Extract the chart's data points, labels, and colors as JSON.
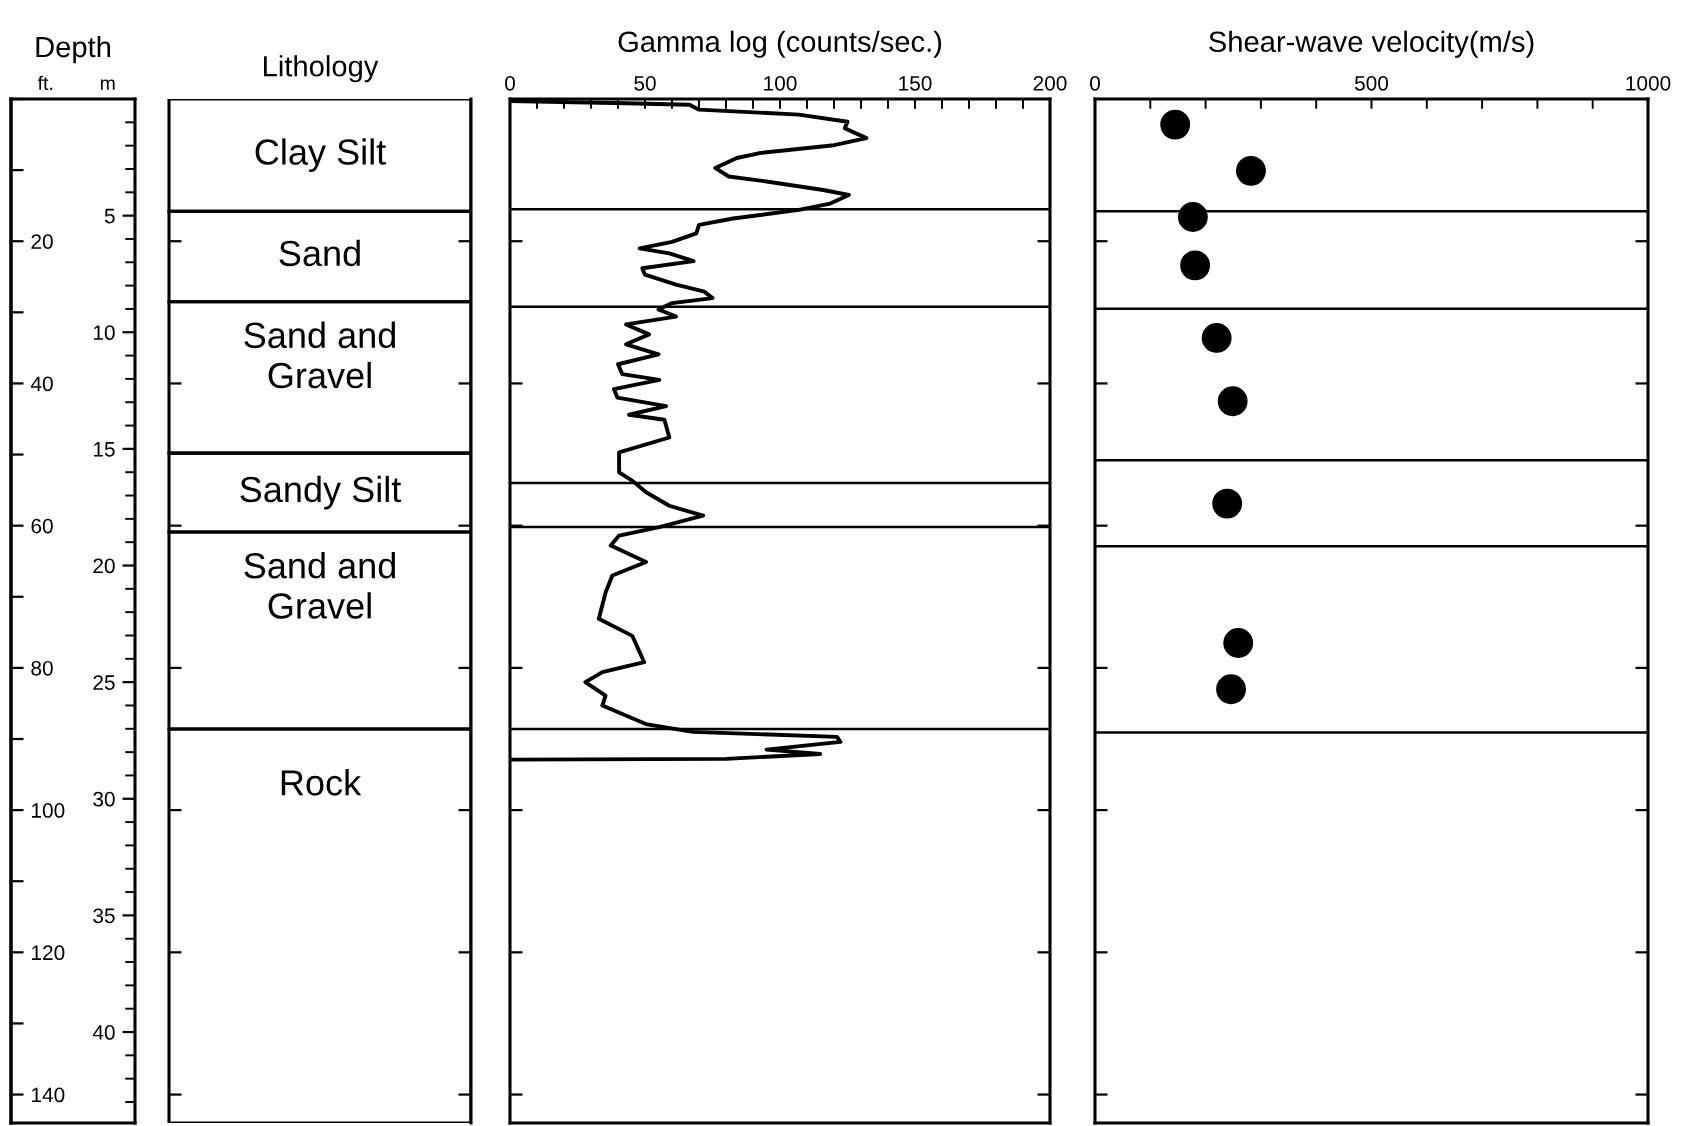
{
  "chart_data": [
    {
      "type": "bar",
      "ylabel": "Depth",
      "y2label": "m",
      "annotations": [
        "ft."
      ],
      "stacked": true,
      "categories": [
        "Lithology"
      ],
      "ylim": [
        144,
        0
      ],
      "yticks": [
        20,
        40,
        60,
        80,
        100,
        120,
        140
      ],
      "y2lim": [
        43.9,
        0
      ],
      "y2ticks": [
        5,
        10,
        15,
        20,
        25,
        30,
        35,
        40
      ],
      "series": [
        {
          "name": "Clay Silt",
          "values": [
            15.8
          ]
        },
        {
          "name": "Sand",
          "values": [
            12.7
          ]
        },
        {
          "name": "Sand and\nGravel",
          "values": [
            21.3
          ]
        },
        {
          "name": "Sandy Silt",
          "values": [
            11.1
          ]
        },
        {
          "name": "Sand and\nGravel",
          "values": [
            27.7
          ]
        },
        {
          "name": "Rock",
          "values": [
            55.4
          ]
        }
      ]
    },
    {
      "type": "line",
      "title": "Gamma log (counts/sec.)",
      "xlim": [
        0,
        200
      ],
      "xticks": [
        0,
        {
          "value": 10,
          "label": null
        },
        {
          "value": 20,
          "label": null
        },
        {
          "value": 30,
          "label": null
        },
        {
          "value": 40,
          "label": null
        },
        50,
        {
          "value": 60,
          "label": null
        },
        {
          "value": 70,
          "label": null
        },
        {
          "value": 80,
          "label": null
        },
        {
          "value": 90,
          "label": null
        },
        100,
        {
          "value": 110,
          "label": null
        },
        {
          "value": 120,
          "label": null
        },
        {
          "value": 130,
          "label": null
        },
        {
          "value": 140,
          "label": null
        },
        150,
        {
          "value": 160,
          "label": null
        },
        {
          "value": 170,
          "label": null
        },
        {
          "value": 180,
          "label": null
        },
        {
          "value": 190,
          "label": null
        },
        200
      ],
      "ylim": [
        144,
        0
      ],
      "yticks": [
        {
          "value": 20,
          "label": null
        },
        {
          "value": 40,
          "label": null
        },
        {
          "value": 60,
          "label": null
        },
        {
          "value": 80,
          "label": null
        },
        {
          "value": 100,
          "label": null
        },
        {
          "value": 120,
          "label": null
        },
        {
          "value": 140,
          "label": null
        }
      ],
      "tick_labels": "x",
      "marker": "none",
      "line_style": "solid",
      "ref_lines": [
        {
          "axis": "y",
          "value": 15.5
        },
        {
          "axis": "y",
          "value": 29.2
        },
        {
          "axis": "y",
          "value": 54.0
        },
        {
          "axis": "y",
          "value": 60.2
        },
        {
          "axis": "y",
          "value": 88.6
        }
      ],
      "series": [
        {
          "color": "#000000",
          "x": [
            0,
            43,
            66.5,
            70,
            107,
            125,
            124,
            132,
            120,
            92.5,
            84,
            76,
            81,
            95,
            116,
            125.5,
            118.6,
            107,
            82.6,
            70,
            69,
            60,
            48,
            59,
            68,
            49,
            50,
            61.5,
            72,
            75,
            60,
            55,
            61.5,
            43,
            51.5,
            43,
            55,
            40,
            41.6,
            55.3,
            38.5,
            39.8,
            57.8,
            44.1,
            57.2,
            59,
            40.4,
            40.4,
            45.4,
            50.4,
            59,
            71.5,
            55.3,
            40.4,
            37.3,
            50.4,
            37.9,
            35.4,
            32.9,
            45.3,
            49.7,
            34.2,
            27.9,
            35.4,
            34.2,
            50.3,
            67.7,
            121.1,
            122.4,
            95,
            114.9,
            80.1,
            0
          ],
          "values": [
            0.3,
            0.6,
            0.8,
            1.5,
            2.2,
            3.2,
            4.1,
            5.5,
            6.5,
            7.6,
            8.3,
            9.7,
            10.9,
            11.6,
            12.8,
            13.5,
            14.7,
            15.6,
            16.8,
            17.7,
            18.9,
            20.1,
            21,
            21.7,
            22.8,
            23.8,
            24.7,
            26.1,
            27.1,
            28,
            28.7,
            29.6,
            30.6,
            31.7,
            33.1,
            34.5,
            35.9,
            37.3,
            38.7,
            39.5,
            40.8,
            42,
            43.2,
            44.4,
            45.1,
            47.6,
            49.7,
            52.5,
            53.7,
            55.3,
            57.2,
            58.6,
            60.2,
            61.4,
            62.8,
            65.1,
            67,
            69.4,
            73.1,
            75.5,
            79.2,
            80.6,
            82,
            83.9,
            85.3,
            87.9,
            89,
            89.7,
            90.4,
            91.5,
            92.1,
            92.8,
            92.9
          ]
        }
      ]
    },
    {
      "type": "scatter",
      "title": "Shear-wave velocity(m/s)",
      "xlim": [
        0,
        1000
      ],
      "xticks": [
        0,
        {
          "value": 100,
          "label": null
        },
        {
          "value": 200,
          "label": null
        },
        {
          "value": 300,
          "label": null
        },
        {
          "value": 400,
          "label": null
        },
        500,
        {
          "value": 600,
          "label": null
        },
        {
          "value": 700,
          "label": null
        },
        {
          "value": 800,
          "label": null
        },
        {
          "value": 900,
          "label": null
        },
        1000
      ],
      "ylim": [
        144,
        0
      ],
      "yticks": [
        {
          "value": 20,
          "label": null
        },
        {
          "value": 40,
          "label": null
        },
        {
          "value": 60,
          "label": null
        },
        {
          "value": 80,
          "label": null
        },
        {
          "value": 100,
          "label": null
        },
        {
          "value": 120,
          "label": null
        },
        {
          "value": 140,
          "label": null
        }
      ],
      "tick_labels": "x",
      "marker": "circle",
      "ref_lines": [
        {
          "axis": "y",
          "value": 15.8
        },
        {
          "axis": "y",
          "value": 29.5
        },
        {
          "axis": "y",
          "value": 50.8
        },
        {
          "axis": "y",
          "value": 62.9
        },
        {
          "axis": "y",
          "value": 89.1
        }
      ],
      "series": [
        {
          "color": "#000000",
          "x": [
            145,
            282,
            177,
            181,
            220,
            249,
            239,
            259,
            246
          ],
          "values": [
            3.6,
            10.1,
            16.6,
            23.4,
            33.6,
            42.5,
            56.9,
            76.5,
            83.0
          ]
        }
      ]
    }
  ]
}
